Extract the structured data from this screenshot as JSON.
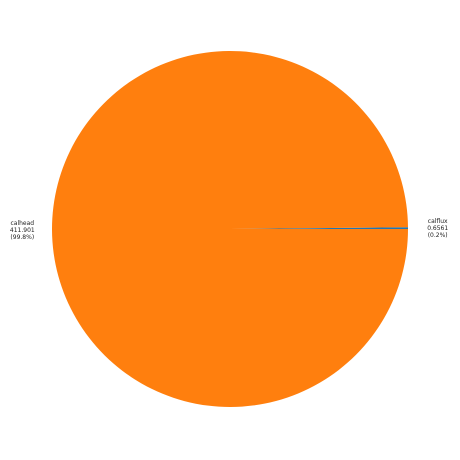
{
  "chart_data": {
    "type": "pie",
    "title": "",
    "legend": "none",
    "slices": [
      {
        "label": "calflux",
        "value": 0.6561,
        "value_text": "0.6561",
        "percent_text": "(0.2%)",
        "color": "#1f77b4"
      },
      {
        "label": "calhead",
        "value": 411.901,
        "value_text": "411.901",
        "percent_text": "(99.8%)",
        "color": "#ff7f0e"
      }
    ]
  }
}
